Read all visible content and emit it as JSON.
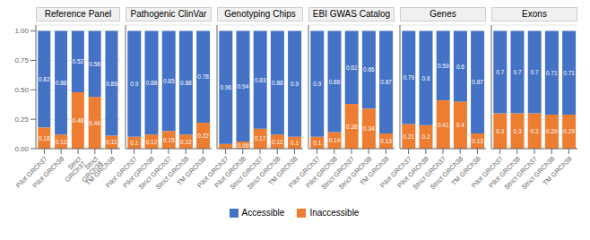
{
  "chart_data": [
    {
      "type": "bar",
      "title": "Reference Panel",
      "categories": [
        "Pilot GRCh37",
        "Pilot GRCh38",
        "Strict GRCh37",
        "Strict GRCh38",
        "TM GRCh38"
      ],
      "series": [
        {
          "name": "Inaccessible",
          "color": "#ED7D31",
          "values": [
            0.18,
            0.12,
            0.48,
            0.44,
            0.11
          ]
        },
        {
          "name": "Accessible",
          "color": "#4472C4",
          "values": [
            0.82,
            0.88,
            0.52,
            0.56,
            0.89
          ]
        }
      ],
      "stacked": true,
      "data_labels": true,
      "ylim": [
        0,
        1.05
      ],
      "yticks": [
        {
          "value": 0,
          "label": "0.00"
        },
        {
          "value": 0.25,
          "label": "0.25"
        },
        {
          "value": 0.5,
          "label": "0.50"
        },
        {
          "value": 0.75,
          "label": "0.75"
        },
        {
          "value": 1,
          "label": "1.00"
        }
      ],
      "grid": true,
      "legend": "bottom"
    },
    {
      "type": "bar",
      "title": "Pathogenic ClinVar",
      "categories": [
        "Pilot GRCh37",
        "Pilot GRCh38",
        "Strict GRCh37",
        "Strict GRCh38",
        "TM GRCh38"
      ],
      "series": [
        {
          "name": "Inaccessible",
          "color": "#ED7D31",
          "values": [
            0.1,
            0.12,
            0.15,
            0.12,
            0.22
          ]
        },
        {
          "name": "Accessible",
          "color": "#4472C4",
          "values": [
            0.9,
            0.88,
            0.85,
            0.88,
            0.78
          ]
        }
      ],
      "stacked": true,
      "data_labels": true,
      "ylim": [
        0,
        1.05
      ],
      "yticks": [
        0,
        0.25,
        0.5,
        0.75,
        1
      ],
      "tick_labels": "x",
      "grid": true,
      "legend": "bottom"
    },
    {
      "type": "bar",
      "title": "Genotyping Chips",
      "categories": [
        "Pilot GRCh37",
        "Pilot GRCh38",
        "Strict GRCh37",
        "Strict GRCh38",
        "TM GRCh38"
      ],
      "series": [
        {
          "name": "Inaccessible",
          "color": "#ED7D31",
          "values": [
            0.04,
            0.06,
            0.17,
            0.12,
            0.1
          ],
          "value_labels": [
            null,
            "0.06",
            "0.17",
            "0.12",
            "0.1"
          ]
        },
        {
          "name": "Accessible",
          "color": "#4472C4",
          "values": [
            0.96,
            0.94,
            0.83,
            0.88,
            0.9
          ]
        }
      ],
      "stacked": true,
      "data_labels": true,
      "ylim": [
        0,
        1.05
      ],
      "yticks": [
        0,
        0.25,
        0.5,
        0.75,
        1
      ],
      "tick_labels": "x",
      "grid": true,
      "legend": "bottom"
    },
    {
      "type": "bar",
      "title": "EBI GWAS Catalog",
      "categories": [
        "Pilot GRCh37",
        "Pilot GRCh38",
        "Strict GRCh37",
        "Strict GRCh38",
        "TM GRCh38"
      ],
      "series": [
        {
          "name": "Inaccessible",
          "color": "#ED7D31",
          "values": [
            0.1,
            0.14,
            0.38,
            0.34,
            0.13
          ]
        },
        {
          "name": "Accessible",
          "color": "#4472C4",
          "values": [
            0.9,
            0.86,
            0.62,
            0.66,
            0.87
          ]
        }
      ],
      "stacked": true,
      "data_labels": true,
      "ylim": [
        0,
        1.05
      ],
      "yticks": [
        0,
        0.25,
        0.5,
        0.75,
        1
      ],
      "tick_labels": "x",
      "grid": true,
      "legend": "bottom"
    },
    {
      "type": "bar",
      "title": "Genes",
      "categories": [
        "Pilot GRCh37",
        "Pilot GRCh38",
        "Strict GRCh37",
        "Strict GRCh38",
        "TM GRCh38"
      ],
      "series": [
        {
          "name": "Inaccessible",
          "color": "#ED7D31",
          "values": [
            0.21,
            0.2,
            0.41,
            0.4,
            0.13
          ]
        },
        {
          "name": "Accessible",
          "color": "#4472C4",
          "values": [
            0.79,
            0.8,
            0.59,
            0.6,
            0.87
          ]
        }
      ],
      "stacked": true,
      "data_labels": true,
      "ylim": [
        0,
        1.05
      ],
      "yticks": [
        0,
        0.25,
        0.5,
        0.75,
        1
      ],
      "tick_labels": "x",
      "grid": true,
      "legend": "bottom"
    },
    {
      "type": "bar",
      "title": "Exons",
      "categories": [
        "Pilot GRCh37",
        "Pilot GRCh38",
        "Strict GRCh37",
        "Strict GRCh38",
        "TM GRCh38"
      ],
      "series": [
        {
          "name": "Inaccessible",
          "color": "#ED7D31",
          "values": [
            0.3,
            0.3,
            0.3,
            0.29,
            0.29
          ]
        },
        {
          "name": "Accessible",
          "color": "#4472C4",
          "values": [
            0.7,
            0.7,
            0.7,
            0.71,
            0.71
          ]
        }
      ],
      "stacked": true,
      "data_labels": true,
      "ylim": [
        0,
        1.05
      ],
      "yticks": [
        0,
        0.25,
        0.5,
        0.75,
        1
      ],
      "tick_labels": "x",
      "grid": true,
      "legend": "bottom"
    }
  ]
}
